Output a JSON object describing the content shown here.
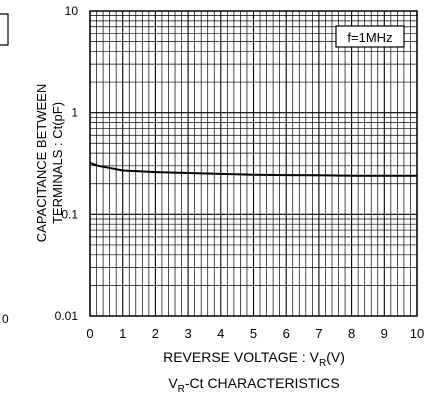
{
  "chart_data": {
    "type": "line",
    "title": "",
    "xlabel": "REVERSE VOLTAGE : V_R(V)",
    "xlabel_parts": {
      "main": "REVERSE VOLTAGE : V",
      "sub": "R",
      "tail": "(V)"
    },
    "ylabel_line1": "CAPACITANCE BETWEEN",
    "ylabel_line2": "TERMINALS : Ct(pF)",
    "caption_parts": {
      "main": "V",
      "sub": "R",
      "tail": "-Ct CHARACTERISTICS"
    },
    "legend_text": "f=1MHz",
    "legend_position": "top-right",
    "x_scale": "linear",
    "y_scale": "log",
    "xlim": [
      0,
      10
    ],
    "ylim": [
      0.01,
      10
    ],
    "xticks": [
      "0",
      "1",
      "2",
      "3",
      "4",
      "5",
      "6",
      "7",
      "8",
      "9",
      "10"
    ],
    "yticks": [
      {
        "value": 10,
        "label": "10"
      },
      {
        "value": 1,
        "label": "1"
      },
      {
        "value": 0.1,
        "label": "0.1"
      },
      {
        "value": 0.01,
        "label": "0.01"
      }
    ],
    "grid": true,
    "left_edge_fragment": "0",
    "series": [
      {
        "name": "",
        "x": [
          0,
          0.25,
          0.5,
          0.75,
          1,
          1.5,
          2,
          3,
          4,
          5,
          6,
          7,
          8,
          9,
          10
        ],
        "y": [
          0.32,
          0.3,
          0.29,
          0.28,
          0.27,
          0.265,
          0.26,
          0.255,
          0.25,
          0.245,
          0.243,
          0.242,
          0.24,
          0.24,
          0.24
        ]
      }
    ]
  }
}
